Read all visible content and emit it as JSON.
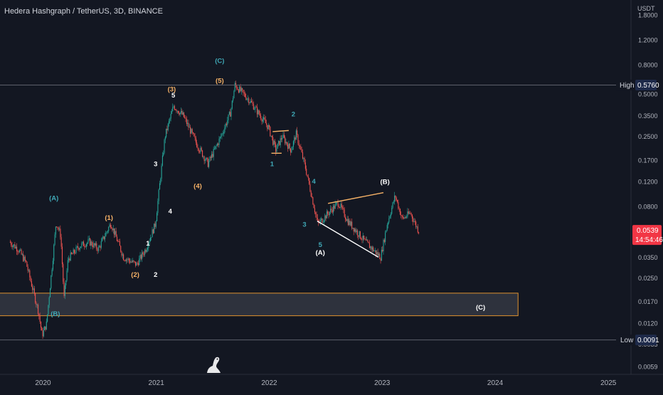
{
  "header": {
    "title": "Hedera Hashgraph / TetherUS, 3D, BINANCE"
  },
  "price_axis": {
    "currency": "USDT",
    "ticks": [
      "1.8000",
      "1.2000",
      "0.8000",
      "0.5000",
      "0.3500",
      "0.2500",
      "0.1700",
      "0.1200",
      "0.0800",
      "0.0500",
      "0.0350",
      "0.0250",
      "0.0170",
      "0.0120",
      "0.0085",
      "0.0059"
    ],
    "high_label": "High",
    "high_value": "0.5760",
    "low_label": "Low",
    "low_value": "0.0091",
    "last_price": "0.0539",
    "countdown": "14:54:46"
  },
  "time_axis": {
    "ticks": [
      "2020",
      "2021",
      "2022",
      "2023",
      "2024",
      "2025"
    ]
  },
  "colors": {
    "background": "#131722",
    "up": "#26a69a",
    "down": "#ef5350",
    "wave_orange": "#f7b267",
    "wave_cyan": "#3fa7b5",
    "zone_border": "#e0922f",
    "price_badge": "#f23645",
    "high_low_badge": "#1e2a4a"
  },
  "chart_data": {
    "type": "candlestick",
    "title": "Hedera Hashgraph / TetherUS, 3D, BINANCE",
    "ylabel": "USDT",
    "y_scale": "log",
    "ylim": [
      0.0052,
      2.3
    ],
    "xlim": [
      "2019-08-15",
      "2025-03-15"
    ],
    "x_ticks": [
      "2020",
      "2021",
      "2022",
      "2023",
      "2024",
      "2025"
    ],
    "grid": false,
    "high": 0.576,
    "low": 0.0091,
    "last": 0.0539,
    "path": [
      {
        "x": "2019-09-17",
        "y": 0.045
      },
      {
        "x": "2019-10-15",
        "y": 0.04
      },
      {
        "x": "2019-11-10",
        "y": 0.032
      },
      {
        "x": "2019-12-20",
        "y": 0.0145
      },
      {
        "x": "2020-01-01",
        "y": 0.0098
      },
      {
        "x": "2020-01-15",
        "y": 0.0118
      },
      {
        "x": "2020-02-05",
        "y": 0.035
      },
      {
        "x": "2020-02-15",
        "y": 0.062
      },
      {
        "x": "2020-03-01",
        "y": 0.05
      },
      {
        "x": "2020-03-12",
        "y": 0.018
      },
      {
        "x": "2020-03-25",
        "y": 0.034
      },
      {
        "x": "2020-05-01",
        "y": 0.042
      },
      {
        "x": "2020-06-01",
        "y": 0.045
      },
      {
        "x": "2020-07-01",
        "y": 0.04
      },
      {
        "x": "2020-08-10",
        "y": 0.061
      },
      {
        "x": "2020-09-20",
        "y": 0.035
      },
      {
        "x": "2020-11-01",
        "y": 0.031
      },
      {
        "x": "2020-12-01",
        "y": 0.04
      },
      {
        "x": "2021-01-01",
        "y": 0.06
      },
      {
        "x": "2021-02-01",
        "y": 0.25
      },
      {
        "x": "2021-03-01",
        "y": 0.41
      },
      {
        "x": "2021-04-01",
        "y": 0.35
      },
      {
        "x": "2021-05-15",
        "y": 0.22
      },
      {
        "x": "2021-06-20",
        "y": 0.16
      },
      {
        "x": "2021-08-01",
        "y": 0.25
      },
      {
        "x": "2021-09-01",
        "y": 0.37
      },
      {
        "x": "2021-09-15",
        "y": 0.576
      },
      {
        "x": "2021-11-01",
        "y": 0.45
      },
      {
        "x": "2022-01-01",
        "y": 0.29
      },
      {
        "x": "2022-01-25",
        "y": 0.2
      },
      {
        "x": "2022-02-15",
        "y": 0.25
      },
      {
        "x": "2022-03-15",
        "y": 0.2
      },
      {
        "x": "2022-04-01",
        "y": 0.26
      },
      {
        "x": "2022-05-01",
        "y": 0.15
      },
      {
        "x": "2022-06-10",
        "y": 0.06
      },
      {
        "x": "2022-08-15",
        "y": 0.085
      },
      {
        "x": "2022-09-15",
        "y": 0.063
      },
      {
        "x": "2022-11-10",
        "y": 0.045
      },
      {
        "x": "2022-12-30",
        "y": 0.035
      },
      {
        "x": "2023-01-20",
        "y": 0.06
      },
      {
        "x": "2023-02-15",
        "y": 0.095
      },
      {
        "x": "2023-03-10",
        "y": 0.065
      },
      {
        "x": "2023-04-05",
        "y": 0.072
      },
      {
        "x": "2023-05-01",
        "y": 0.0539
      }
    ],
    "zones": [
      {
        "x1": "2019-07-15",
        "x2": "2024-03-15",
        "y1": 0.0135,
        "y2": 0.0195,
        "label": "(C)"
      }
    ],
    "lines": [
      {
        "points": [
          {
            "x": "2022-01-12",
            "y": 0.27
          },
          {
            "x": "2022-03-05",
            "y": 0.275
          }
        ],
        "color": "orange"
      },
      {
        "points": [
          {
            "x": "2022-01-08",
            "y": 0.19
          },
          {
            "x": "2022-02-10",
            "y": 0.19
          }
        ],
        "color": "orange"
      },
      {
        "points": [
          {
            "x": "2022-07-10",
            "y": 0.084
          },
          {
            "x": "2023-01-05",
            "y": 0.1
          }
        ],
        "color": "orange"
      },
      {
        "points": [
          {
            "x": "2022-06-05",
            "y": 0.063
          },
          {
            "x": "2022-12-20",
            "y": 0.035
          }
        ],
        "color": "white"
      }
    ],
    "annotations": [
      {
        "text": "(A)",
        "x": "2020-02-05",
        "y": 0.092,
        "color": "cyan"
      },
      {
        "text": "(B)",
        "x": "2020-02-10",
        "y": 0.014,
        "color": "cyan"
      },
      {
        "text": "(1)",
        "x": "2020-08-01",
        "y": 0.067,
        "color": "orange"
      },
      {
        "text": "(2)",
        "x": "2020-10-25",
        "y": 0.0265,
        "color": "orange"
      },
      {
        "text": "1",
        "x": "2020-12-05",
        "y": 0.044,
        "color": "white"
      },
      {
        "text": "2",
        "x": "2020-12-30",
        "y": 0.0265,
        "color": "white"
      },
      {
        "text": "3",
        "x": "2020-12-30",
        "y": 0.16,
        "color": "white"
      },
      {
        "text": "4",
        "x": "2021-02-15",
        "y": 0.074,
        "color": "white"
      },
      {
        "text": "(3)",
        "x": "2021-02-20",
        "y": 0.54,
        "color": "orange"
      },
      {
        "text": "5",
        "x": "2021-02-25",
        "y": 0.49,
        "color": "white"
      },
      {
        "text": "(4)",
        "x": "2021-05-15",
        "y": 0.112,
        "color": "orange"
      },
      {
        "text": "(5)",
        "x": "2021-07-25",
        "y": 0.62,
        "color": "orange"
      },
      {
        "text": "(C)",
        "x": "2021-07-25",
        "y": 0.86,
        "color": "cyan"
      },
      {
        "text": "2",
        "x": "2022-03-20",
        "y": 0.36,
        "color": "cyan"
      },
      {
        "text": "1",
        "x": "2022-01-10",
        "y": 0.16,
        "color": "cyan"
      },
      {
        "text": "4",
        "x": "2022-05-25",
        "y": 0.121,
        "color": "cyan"
      },
      {
        "text": "3",
        "x": "2022-04-25",
        "y": 0.06,
        "color": "cyan"
      },
      {
        "text": "5",
        "x": "2022-06-15",
        "y": 0.043,
        "color": "cyan"
      },
      {
        "text": "(A)",
        "x": "2022-06-15",
        "y": 0.038,
        "color": "white"
      },
      {
        "text": "(B)",
        "x": "2023-01-10",
        "y": 0.12,
        "color": "white"
      },
      {
        "text": "(C)",
        "x": "2023-11-15",
        "y": 0.0155,
        "color": "white"
      }
    ]
  }
}
